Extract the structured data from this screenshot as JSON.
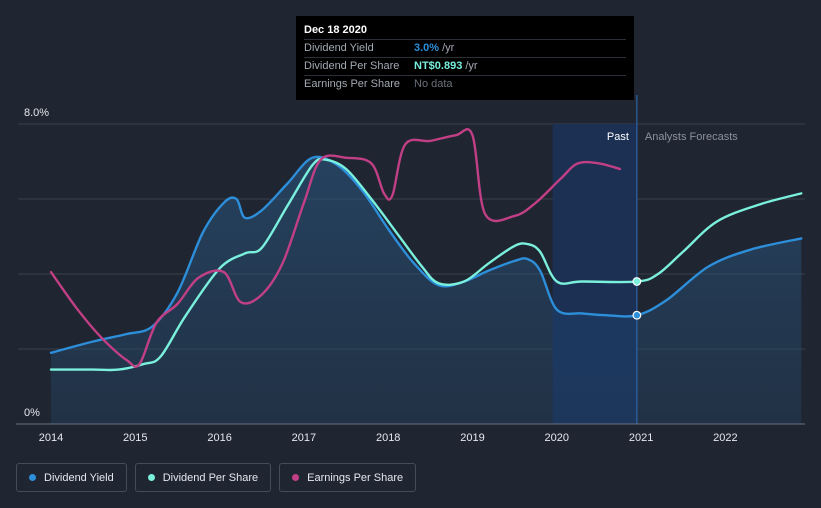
{
  "chart_data": {
    "type": "line",
    "x_ticks": [
      "2014",
      "2015",
      "2016",
      "2017",
      "2018",
      "2019",
      "2020",
      "2021",
      "2022"
    ],
    "y_labels": [
      "8.0%",
      "0%"
    ],
    "ylim": [
      0,
      8
    ],
    "xlim": [
      2014,
      2022.9
    ],
    "past_label": "Past",
    "forecast_label": "Analysts Forecasts",
    "forecast_start": 2020.95,
    "shaded_period": [
      2019.95,
      2020.95
    ],
    "series": [
      {
        "name": "Dividend Yield",
        "color": "#2d8ed9",
        "unit": "%",
        "points": [
          [
            2014,
            1.9
          ],
          [
            2014.5,
            2.2
          ],
          [
            2014.9,
            2.4
          ],
          [
            2015.2,
            2.6
          ],
          [
            2015.5,
            3.5
          ],
          [
            2015.8,
            5.1
          ],
          [
            2016.05,
            5.9
          ],
          [
            2016.2,
            6
          ],
          [
            2016.3,
            5.5
          ],
          [
            2016.5,
            5.7
          ],
          [
            2016.8,
            6.4
          ],
          [
            2017.1,
            7.1
          ],
          [
            2017.4,
            6.9
          ],
          [
            2017.7,
            6.2
          ],
          [
            2018,
            5.2
          ],
          [
            2018.3,
            4.3
          ],
          [
            2018.6,
            3.7
          ],
          [
            2018.9,
            3.8
          ],
          [
            2019.2,
            4.1
          ],
          [
            2019.5,
            4.35
          ],
          [
            2019.65,
            4.4
          ],
          [
            2019.8,
            4.1
          ],
          [
            2020,
            3.05
          ],
          [
            2020.3,
            2.95
          ],
          [
            2020.6,
            2.9
          ],
          [
            2020.95,
            2.9
          ],
          [
            2021.3,
            3.3
          ],
          [
            2021.8,
            4.2
          ],
          [
            2022.3,
            4.65
          ],
          [
            2022.9,
            4.95
          ]
        ]
      },
      {
        "name": "Dividend Per Share",
        "color": "#7af0dd",
        "unit": "NT$",
        "points": [
          [
            2014,
            1.45
          ],
          [
            2014.5,
            1.45
          ],
          [
            2014.8,
            1.45
          ],
          [
            2015.1,
            1.6
          ],
          [
            2015.3,
            1.8
          ],
          [
            2015.6,
            2.9
          ],
          [
            2016,
            4.15
          ],
          [
            2016.3,
            4.55
          ],
          [
            2016.5,
            4.7
          ],
          [
            2016.8,
            5.8
          ],
          [
            2017.1,
            6.9
          ],
          [
            2017.25,
            7.05
          ],
          [
            2017.5,
            6.8
          ],
          [
            2017.8,
            6
          ],
          [
            2018.1,
            5.1
          ],
          [
            2018.4,
            4.2
          ],
          [
            2018.6,
            3.75
          ],
          [
            2018.9,
            3.8
          ],
          [
            2019.2,
            4.3
          ],
          [
            2019.5,
            4.75
          ],
          [
            2019.65,
            4.8
          ],
          [
            2019.8,
            4.6
          ],
          [
            2020,
            3.8
          ],
          [
            2020.3,
            3.8
          ],
          [
            2020.95,
            3.8
          ],
          [
            2021.2,
            4.0
          ],
          [
            2021.5,
            4.6
          ],
          [
            2021.9,
            5.4
          ],
          [
            2022.4,
            5.85
          ],
          [
            2022.9,
            6.15
          ]
        ]
      },
      {
        "name": "Earnings Per Share",
        "color": "#c13f85",
        "unit": "NT$",
        "points": [
          [
            2014,
            4.05
          ],
          [
            2014.3,
            3.1
          ],
          [
            2014.6,
            2.3
          ],
          [
            2014.9,
            1.7
          ],
          [
            2015.05,
            1.6
          ],
          [
            2015.25,
            2.7
          ],
          [
            2015.5,
            3.2
          ],
          [
            2015.75,
            3.9
          ],
          [
            2016.05,
            4.05
          ],
          [
            2016.25,
            3.25
          ],
          [
            2016.5,
            3.45
          ],
          [
            2016.75,
            4.3
          ],
          [
            2017,
            5.9
          ],
          [
            2017.2,
            7.05
          ],
          [
            2017.5,
            7.1
          ],
          [
            2017.8,
            6.95
          ],
          [
            2017.95,
            6.15
          ],
          [
            2018.05,
            6.1
          ],
          [
            2018.2,
            7.45
          ],
          [
            2018.5,
            7.55
          ],
          [
            2018.8,
            7.7
          ],
          [
            2019,
            7.7
          ],
          [
            2019.15,
            5.6
          ],
          [
            2019.5,
            5.55
          ],
          [
            2019.75,
            5.9
          ],
          [
            2020.05,
            6.55
          ],
          [
            2020.25,
            6.95
          ],
          [
            2020.5,
            6.95
          ],
          [
            2020.75,
            6.8
          ]
        ]
      }
    ],
    "markers": [
      {
        "series": "Dividend Yield",
        "x": 2020.95,
        "y": 2.9
      },
      {
        "series": "Dividend Per Share",
        "x": 2020.95,
        "y": 3.8
      }
    ]
  },
  "tooltip": {
    "date": "Dec 18 2020",
    "rows": [
      {
        "label": "Dividend Yield",
        "value": "3.0%",
        "unit": "/yr",
        "color": "#2d8ed9"
      },
      {
        "label": "Dividend Per Share",
        "value": "NT$0.893",
        "unit": "/yr",
        "color": "#7af0dd"
      },
      {
        "label": "Earnings Per Share",
        "value": "No data",
        "unit": "",
        "color": "#6b717b"
      }
    ]
  },
  "legend": [
    {
      "label": "Dividend Yield",
      "color": "#2d8ed9"
    },
    {
      "label": "Dividend Per Share",
      "color": "#7af0dd"
    },
    {
      "label": "Earnings Per Share",
      "color": "#c13f85"
    }
  ]
}
